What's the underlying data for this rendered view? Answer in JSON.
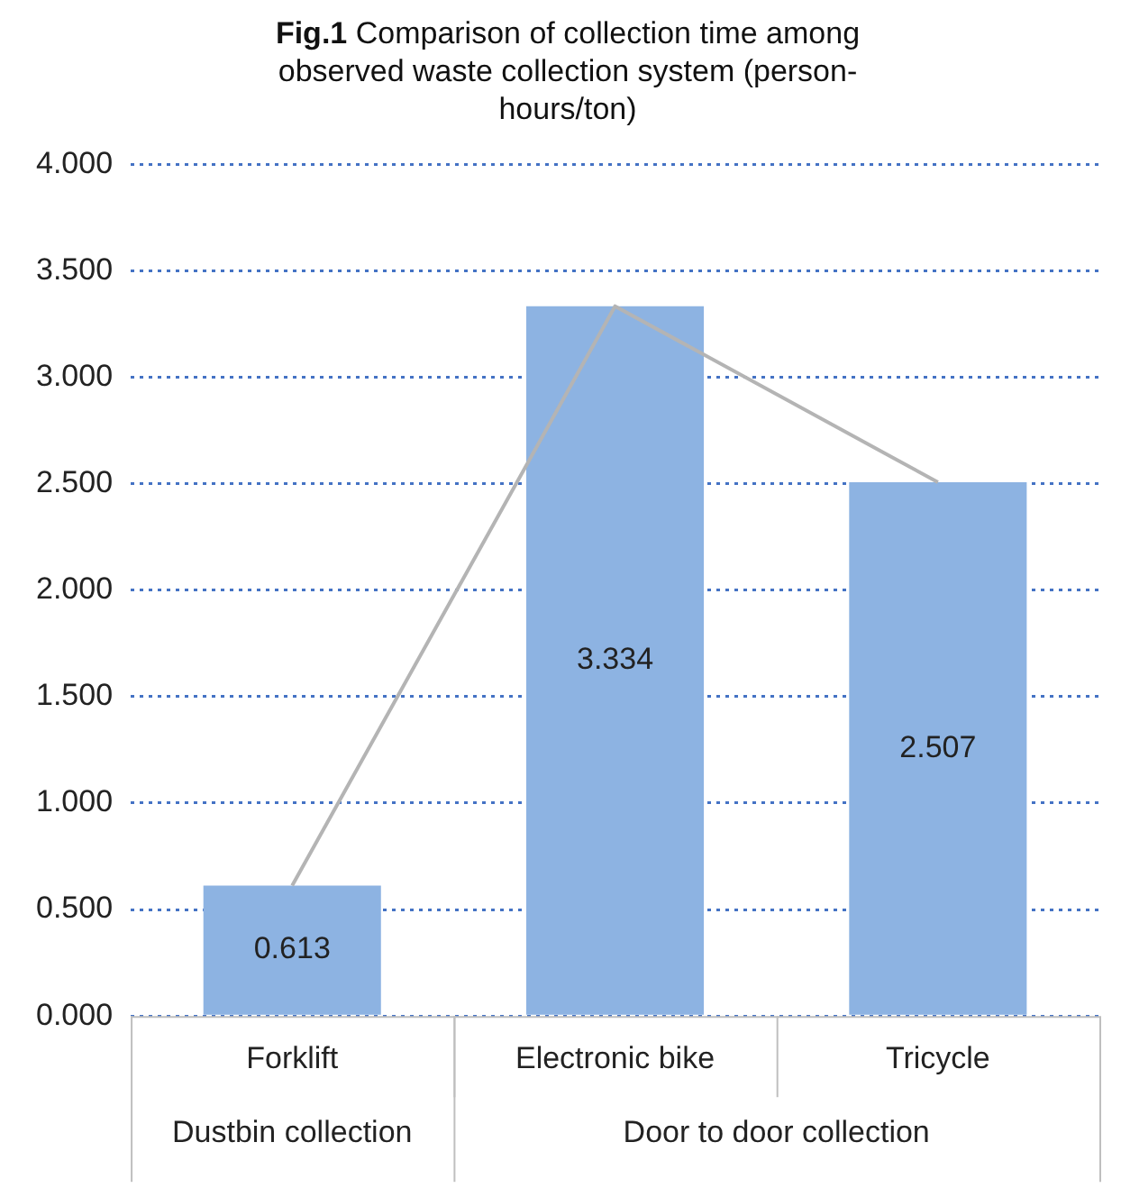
{
  "chart_data": {
    "type": "bar",
    "title": "Fig.1 Comparison of collection time among observed waste collection system (person-hours/ton)",
    "categories": [
      "Forklift",
      "Electronic bike",
      "Tricycle"
    ],
    "series": [
      {
        "color": "#8db3e2",
        "values": [
          0.613,
          3.334,
          2.507
        ]
      },
      {
        "type": "line",
        "color": "#b4b4b4",
        "values": [
          0.613,
          3.334,
          2.507
        ],
        "value_labels": [
          null,
          null,
          null
        ]
      }
    ],
    "ylim": [
      0,
      4
    ],
    "yticks": [
      {
        "value": 0,
        "label": "0.000"
      },
      {
        "value": 0.5,
        "label": "0.500"
      },
      {
        "value": 1,
        "label": "1.000"
      },
      {
        "value": 1.5,
        "label": "1.500"
      },
      {
        "value": 2,
        "label": "2.000"
      },
      {
        "value": 2.5,
        "label": "2.500"
      },
      {
        "value": 3,
        "label": "3.000"
      },
      {
        "value": 3.5,
        "label": "3.500"
      },
      {
        "value": 4,
        "label": "4.000"
      }
    ],
    "grid": "y",
    "legend": false,
    "data_labels": true,
    "marker": "none",
    "annotations": [
      "Dustbin collection",
      "Door to door collection"
    ]
  }
}
